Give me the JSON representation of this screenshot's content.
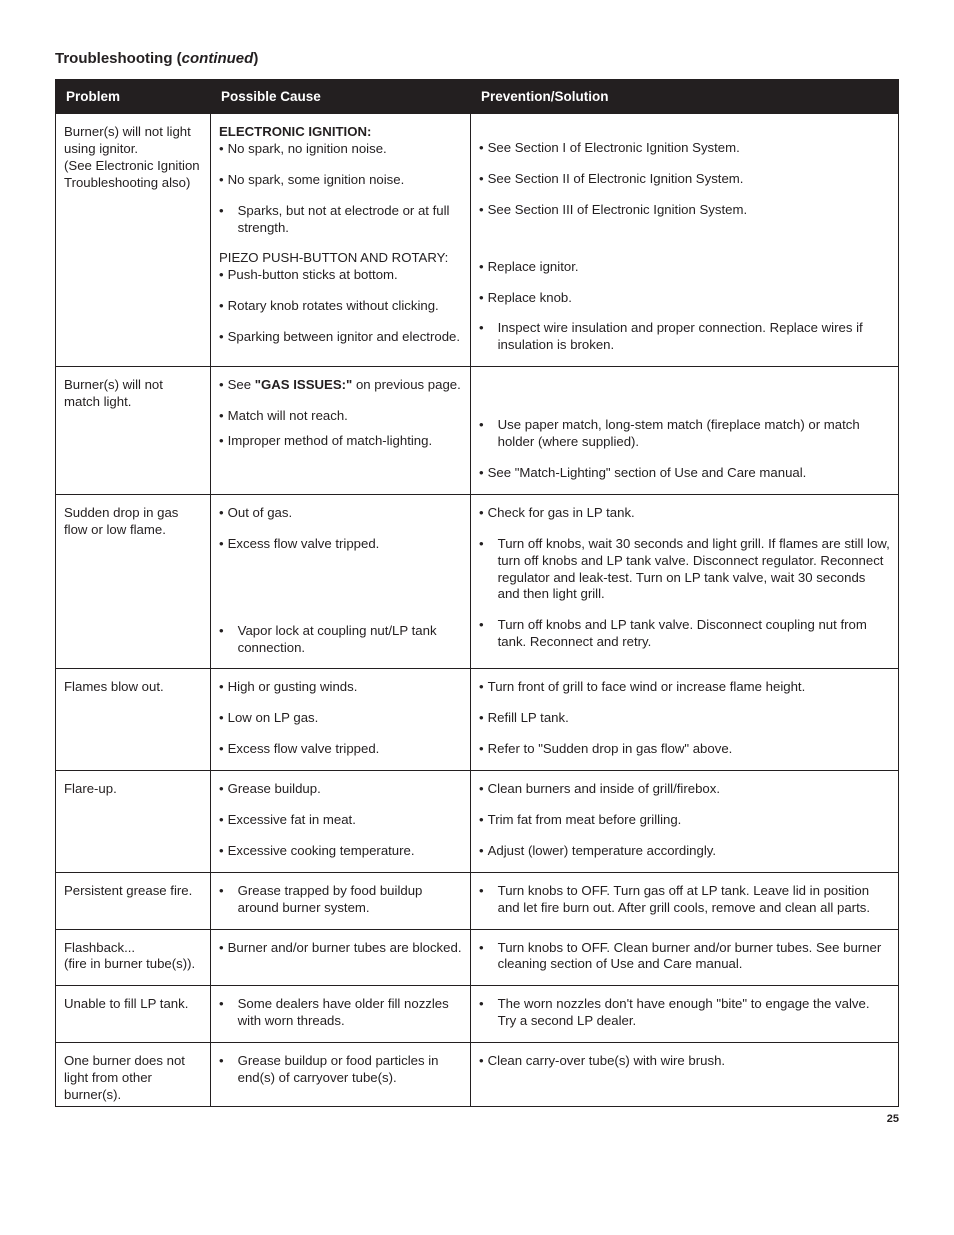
{
  "title_prefix": "Troubleshooting (",
  "title_italic": "continued",
  "title_suffix": ")",
  "page_number": "25",
  "headers": [
    "Problem",
    "Possible Cause",
    "Prevention/Solution"
  ],
  "rows": [
    {
      "problem": [
        "Burner(s) will not  light using ignitor.",
        "(See Electronic Ignition Troubleshooting also)"
      ],
      "cause": [
        {
          "t": "heading",
          "text": "ELECTRONIC IGNITION:"
        },
        {
          "t": "bullet",
          "text": "No spark, no ignition noise.",
          "tight": true
        },
        {
          "t": "gap"
        },
        {
          "t": "bullet",
          "text": "No spark, some ignition noise."
        },
        {
          "t": "gap"
        },
        {
          "t": "bullet",
          "text": "Sparks, but not at electrode or at full strength.",
          "sub": true
        },
        {
          "t": "gap"
        },
        {
          "t": "plain",
          "text": "PIEZO PUSH-BUTTON AND ROTARY:"
        },
        {
          "t": "bullet",
          "text": "Push-button sticks at bottom.",
          "tight": true
        },
        {
          "t": "gap"
        },
        {
          "t": "bullet",
          "text": "Rotary knob rotates without clicking."
        },
        {
          "t": "gap"
        },
        {
          "t": "bullet",
          "text": "Sparking between ignitor and electrode."
        }
      ],
      "solution": [
        {
          "t": "gap2"
        },
        {
          "t": "bullet",
          "text": "See Section I of Electronic Ignition System."
        },
        {
          "t": "gap"
        },
        {
          "t": "bullet",
          "text": "See Section II of Electronic Ignition System."
        },
        {
          "t": "gap"
        },
        {
          "t": "bullet",
          "text": "See Section III of Electronic Ignition System."
        },
        {
          "t": "gap3"
        },
        {
          "t": "bullet",
          "text": "Replace ignitor."
        },
        {
          "t": "gap"
        },
        {
          "t": "bullet",
          "text": "Replace knob."
        },
        {
          "t": "gap"
        },
        {
          "t": "bullet",
          "text": "Inspect wire insulation and proper connection. Replace wires if insulation is broken.",
          "sub": true
        }
      ]
    },
    {
      "problem": [
        "Burner(s) will not match light."
      ],
      "cause": [
        {
          "t": "bullet-rich",
          "pre": "See ",
          "bold": "\"GAS ISSUES:\"",
          "post": " on previous page."
        },
        {
          "t": "gap"
        },
        {
          "t": "bullet",
          "text": "Match will not reach."
        },
        {
          "t": "gap-s"
        },
        {
          "t": "bullet",
          "text": "Improper method of match-lighting."
        }
      ],
      "solution": [
        {
          "t": "gap3"
        },
        {
          "t": "bullet",
          "text": "Use paper match, long-stem match (fireplace match) or match holder (where supplied).",
          "sub": true
        },
        {
          "t": "gap"
        },
        {
          "t": "bullet",
          "text": "See \"Match-Lighting\" section of Use and Care manual."
        }
      ]
    },
    {
      "problem": [
        "Sudden drop in gas flow or low flame."
      ],
      "cause": [
        {
          "t": "bullet",
          "text": "Out of gas."
        },
        {
          "t": "gap"
        },
        {
          "t": "bullet",
          "text": "Excess flow valve tripped."
        },
        {
          "t": "gap5"
        },
        {
          "t": "bullet",
          "text": "Vapor lock at coupling nut/LP tank connection.",
          "sub": true
        }
      ],
      "solution": [
        {
          "t": "bullet",
          "text": "Check for gas in LP tank."
        },
        {
          "t": "gap"
        },
        {
          "t": "bullet",
          "text": "Turn off knobs, wait 30 seconds and light grill. If flames are still low, turn off knobs and LP tank valve. Disconnect regulator. Reconnect regulator and leak-test. Turn on LP tank valve, wait 30 seconds and then light grill.",
          "sub": true
        },
        {
          "t": "gap"
        },
        {
          "t": "bullet",
          "text": "Turn off knobs and LP tank valve. Disconnect coupling nut from tank. Reconnect and retry.",
          "sub": true
        }
      ]
    },
    {
      "problem": [
        "Flames blow out."
      ],
      "cause": [
        {
          "t": "bullet",
          "text": "High or gusting winds."
        },
        {
          "t": "gap"
        },
        {
          "t": "bullet",
          "text": "Low on LP gas."
        },
        {
          "t": "gap"
        },
        {
          "t": "bullet",
          "text": "Excess flow valve tripped."
        }
      ],
      "solution": [
        {
          "t": "bullet",
          "text": "Turn front of grill to face wind or increase flame height."
        },
        {
          "t": "gap"
        },
        {
          "t": "bullet",
          "text": "Refill LP tank."
        },
        {
          "t": "gap"
        },
        {
          "t": "bullet",
          "text": "Refer to \"Sudden drop in gas flow\" above."
        }
      ]
    },
    {
      "problem": [
        "Flare-up."
      ],
      "cause": [
        {
          "t": "bullet",
          "text": "Grease buildup."
        },
        {
          "t": "gap"
        },
        {
          "t": "bullet",
          "text": "Excessive fat in meat."
        },
        {
          "t": "gap"
        },
        {
          "t": "bullet",
          "text": "Excessive cooking temperature."
        }
      ],
      "solution": [
        {
          "t": "bullet",
          "text": "Clean burners and inside of grill/firebox."
        },
        {
          "t": "gap"
        },
        {
          "t": "bullet",
          "text": "Trim fat from meat before grilling."
        },
        {
          "t": "gap"
        },
        {
          "t": "bullet",
          "text": "Adjust (lower) temperature accordingly."
        }
      ]
    },
    {
      "problem": [
        "Persistent grease fire."
      ],
      "cause": [
        {
          "t": "bullet",
          "text": "Grease trapped by food buildup around burner system.",
          "sub": true
        }
      ],
      "solution": [
        {
          "t": "bullet",
          "text": "Turn knobs to OFF. Turn gas off at LP tank. Leave lid in position and let fire burn out. After grill cools, remove and clean all parts.",
          "sub": true
        }
      ]
    },
    {
      "problem": [
        "Flashback...",
        "(fire in burner tube(s))."
      ],
      "cause": [
        {
          "t": "bullet",
          "text": "Burner and/or burner tubes are blocked."
        }
      ],
      "solution": [
        {
          "t": "bullet",
          "text": "Turn knobs to OFF. Clean burner and/or burner tubes. See burner cleaning section of Use and Care manual.",
          "sub": true
        }
      ]
    },
    {
      "problem": [
        "Unable to fill LP tank."
      ],
      "cause": [
        {
          "t": "bullet",
          "text": "Some dealers have older fill nozzles with worn threads.",
          "sub": true
        }
      ],
      "solution": [
        {
          "t": "bullet",
          "text": "The worn nozzles don't have enough \"bite\" to engage the valve. Try a second LP dealer.",
          "sub": true
        }
      ]
    },
    {
      "problem": [
        "One burner does not light from other burner(s)."
      ],
      "cause": [
        {
          "t": "bullet",
          "text": "Grease buildup or food particles in end(s) of carryover tube(s).",
          "sub": true
        }
      ],
      "solution": [
        {
          "t": "bullet",
          "text": "Clean carry-over tube(s) with wire brush."
        }
      ]
    }
  ]
}
